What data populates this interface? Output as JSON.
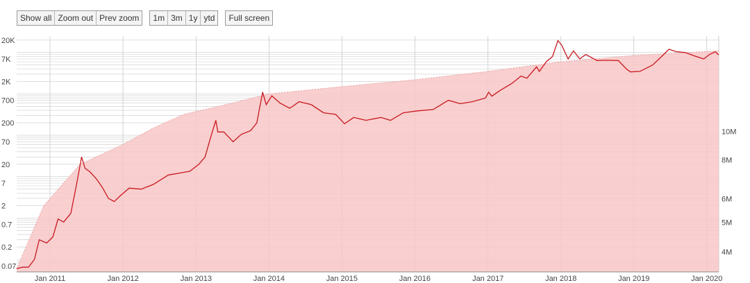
{
  "toolbar": {
    "nav_buttons": [
      "Show all",
      "Zoom out",
      "Prev zoom"
    ],
    "range_buttons": [
      "1m",
      "3m",
      "1y",
      "ytd"
    ],
    "fullscreen_label": "Full screen"
  },
  "colors": {
    "price_line": "#c8181e",
    "area_fill": "#f8c7c7",
    "area_edge": "#e7a0a0",
    "grid": "#c9c9c9"
  },
  "chart_data": {
    "type": "line",
    "title": "",
    "xlabel": "",
    "ylabel": "",
    "y_scale": "log",
    "xlim": [
      "2010-07-18",
      "2020-03-01"
    ],
    "ylim": [
      0.05,
      25000
    ],
    "y_ticks": [
      "20K",
      "7K",
      "2K",
      "700",
      "200",
      "70",
      "20",
      "7",
      "2",
      "0.7",
      "0.2",
      "0.07"
    ],
    "x_ticks": [
      "Jan 2011",
      "Jan 2012",
      "Jan 2013",
      "Jan 2014",
      "Jan 2015",
      "Jan 2016",
      "Jan 2017",
      "Jan 2018",
      "Jan 2019",
      "Jan 2020"
    ],
    "y2_ticks": [
      "10M",
      "8M",
      "6M",
      "5M",
      "4M"
    ],
    "grid": true,
    "series": [
      {
        "type": "line",
        "x": [
          "2010-07-18",
          "2010-08-15",
          "2010-09-15",
          "2010-10-15",
          "2010-11-08",
          "2010-12-15",
          "2011-01-15",
          "2011-02-10",
          "2011-03-10",
          "2011-04-15",
          "2011-05-15",
          "2011-06-08",
          "2011-06-25",
          "2011-07-20",
          "2011-08-20",
          "2011-09-20",
          "2011-10-20",
          "2011-11-18",
          "2011-12-20",
          "2012-02-01",
          "2012-04-01",
          "2012-06-01",
          "2012-08-15",
          "2012-10-01",
          "2012-12-01",
          "2013-01-15",
          "2013-02-15",
          "2013-03-15",
          "2013-04-10",
          "2013-04-20",
          "2013-05-20",
          "2013-07-05",
          "2013-08-15",
          "2013-10-01",
          "2013-11-01",
          "2013-11-30",
          "2013-12-18",
          "2014-01-15",
          "2014-02-25",
          "2014-04-15",
          "2014-06-01",
          "2014-08-01",
          "2014-10-01",
          "2014-12-01",
          "2015-01-14",
          "2015-03-01",
          "2015-05-01",
          "2015-07-15",
          "2015-09-01",
          "2015-11-04",
          "2016-01-15",
          "2016-04-01",
          "2016-06-17",
          "2016-08-15",
          "2016-10-15",
          "2016-12-20",
          "2017-01-04",
          "2017-01-20",
          "2017-03-01",
          "2017-05-01",
          "2017-06-15",
          "2017-07-15",
          "2017-09-01",
          "2017-09-15",
          "2017-10-20",
          "2017-11-20",
          "2017-12-17",
          "2018-01-05",
          "2018-02-06",
          "2018-03-05",
          "2018-04-06",
          "2018-05-05",
          "2018-07-01",
          "2018-08-15",
          "2018-10-15",
          "2018-11-25",
          "2018-12-15",
          "2019-02-01",
          "2019-04-05",
          "2019-05-20",
          "2019-06-26",
          "2019-08-01",
          "2019-09-15",
          "2019-10-25",
          "2019-12-17",
          "2020-01-15",
          "2020-02-13",
          "2020-03-01"
        ],
        "y": [
          0.06,
          0.065,
          0.065,
          0.1,
          0.3,
          0.25,
          0.35,
          0.95,
          0.8,
          1.3,
          7,
          30,
          16,
          13,
          9,
          5.5,
          3,
          2.5,
          3.5,
          5.3,
          5,
          6.5,
          11,
          12,
          13.5,
          20,
          30,
          90,
          230,
          120,
          120,
          70,
          105,
          130,
          200,
          1100,
          550,
          900,
          600,
          450,
          650,
          550,
          350,
          320,
          190,
          270,
          230,
          270,
          230,
          350,
          390,
          420,
          700,
          580,
          650,
          800,
          1100,
          880,
          1200,
          1800,
          2700,
          2400,
          4500,
          3500,
          6000,
          8000,
          19500,
          15000,
          7000,
          11000,
          7000,
          9000,
          6400,
          6500,
          6400,
          4000,
          3400,
          3500,
          5000,
          8000,
          12000,
          10500,
          10000,
          8500,
          7000,
          9000,
          10400,
          8700
        ]
      },
      {
        "type": "area",
        "x": [
          "2010-07-18",
          "2010-12-01",
          "2011-06-01",
          "2012-01-01",
          "2012-06-01",
          "2012-11-01",
          "2013-07-01",
          "2014-01-01",
          "2015-01-01",
          "2016-01-01",
          "2017-01-01",
          "2018-01-01",
          "2019-01-01",
          "2020-03-01"
        ],
        "y": [
          0.06,
          2,
          20,
          60,
          150,
          320,
          600,
          1000,
          1500,
          2200,
          3500,
          6000,
          8500,
          11000
        ]
      }
    ]
  }
}
